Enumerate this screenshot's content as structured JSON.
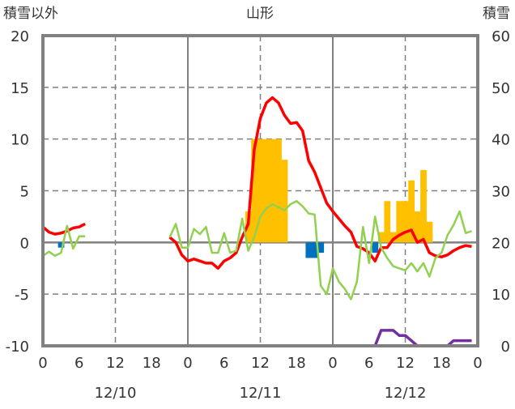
{
  "chart_data": {
    "type": "bar+line",
    "title": "山形",
    "ylabel_left": "積雪以外",
    "ylabel_right": "積雪",
    "ylim_left": [
      -10,
      20
    ],
    "ylim_right": [
      0,
      60
    ],
    "yticks_left": [
      "20",
      "15",
      "10",
      "5",
      "0",
      "-5",
      "-10"
    ],
    "yticks_right": [
      "60",
      "50",
      "40",
      "30",
      "20",
      "10",
      "0"
    ],
    "xticks": [
      "0",
      "6",
      "12",
      "18",
      "0",
      "6",
      "12",
      "18",
      "0",
      "6",
      "12",
      "18",
      "0"
    ],
    "dates": [
      "12/10",
      "12/11",
      "12/12"
    ],
    "x_unit": "hours from 12/10 0:00",
    "colors": {
      "temp": "#ff0000",
      "green": "#92d050",
      "snowfall": "#ffc000",
      "decrease": "#0070c0",
      "depth": "#7030a0",
      "grid": "#808080"
    },
    "bars_snowfall": [
      [
        34,
        3
      ],
      [
        35,
        10
      ],
      [
        36,
        10
      ],
      [
        37,
        10
      ],
      [
        38,
        10
      ],
      [
        39,
        10
      ],
      [
        40,
        8
      ],
      [
        56,
        1
      ],
      [
        57,
        4
      ],
      [
        58,
        1
      ],
      [
        59,
        4
      ],
      [
        60,
        4
      ],
      [
        61,
        6
      ],
      [
        62,
        3
      ],
      [
        63,
        7
      ],
      [
        64,
        2
      ]
    ],
    "bars_decrease": [
      [
        3,
        -0.5
      ],
      [
        44,
        -1.5
      ],
      [
        45,
        -1.5
      ],
      [
        46,
        -1.0
      ],
      [
        55,
        -1.0
      ]
    ],
    "series": [
      {
        "name": "red",
        "segments": [
          {
            "start": 0,
            "values": [
              1.5,
              1.0,
              0.8,
              0.9,
              1.1,
              1.4,
              1.5,
              1.8
            ]
          },
          {
            "start": 21,
            "values": [
              0.5,
              0,
              -1.2,
              -1.8,
              -1.6,
              -1.8,
              -2.0,
              -2.0,
              -2.5,
              -1.8,
              -1.5,
              -1.0,
              0.5,
              1.8,
              9.0,
              12.0,
              13.5,
              14.0,
              13.5,
              12.3,
              11.5,
              11.6,
              10.8,
              7.9,
              6.8,
              5.3,
              3.8,
              3.0,
              2.3,
              1.6,
              1.0,
              -0.4,
              -0.6,
              -1.0,
              -1.8,
              -0.5,
              -0.5,
              0.3,
              0.7,
              1.0,
              1.2,
              0,
              0.3,
              -1.0,
              -1.3,
              -1.4,
              -1.2,
              -0.8,
              -0.5,
              -0.3,
              -0.4
            ]
          }
        ]
      },
      {
        "name": "green",
        "segments": [
          {
            "start": 0,
            "values": [
              -1.3,
              -0.9,
              -1.3,
              -1.0,
              1.6,
              -0.6,
              0.6,
              0.6
            ]
          },
          {
            "start": 21,
            "values": [
              0.5,
              1.8,
              -0.5,
              -0.5,
              1.3,
              0.8,
              1.5,
              -1.0,
              -1.0,
              0.9,
              -1.0,
              -0.8,
              2.3,
              -0.8,
              0.5,
              2.5,
              3.3,
              3.7,
              3.4,
              3.1,
              3.7,
              4.0,
              3.5,
              2.8,
              2.7,
              -4.2,
              -5.0,
              -2.5,
              -3.8,
              -4.5,
              -5.5,
              -3.8,
              1.5,
              -2.0,
              2.5,
              -0.5,
              -1.5,
              -2.3,
              -2.5,
              -2.7,
              -2.0,
              -2.8,
              -2.0,
              -3.3,
              -1.5,
              -1.0,
              0.7,
              1.7,
              3.0,
              0.9,
              1.1
            ]
          }
        ]
      },
      {
        "name": "snow_depth",
        "axis": "right",
        "segments": [
          {
            "start": 0,
            "values": [
              0,
              0,
              0,
              0,
              0,
              0,
              0,
              0
            ]
          },
          {
            "start": 21,
            "values": [
              0,
              0,
              0,
              0,
              0,
              0,
              0,
              0,
              0,
              0,
              0,
              0,
              0,
              0,
              0,
              0,
              0,
              0,
              0,
              0,
              0,
              0,
              0,
              0,
              0,
              0,
              0,
              0,
              0,
              0,
              0,
              0,
              0,
              0,
              0,
              3,
              3,
              3,
              2,
              2,
              1,
              0,
              0,
              0,
              0,
              0,
              0,
              1,
              1,
              1,
              1
            ]
          }
        ]
      }
    ]
  }
}
